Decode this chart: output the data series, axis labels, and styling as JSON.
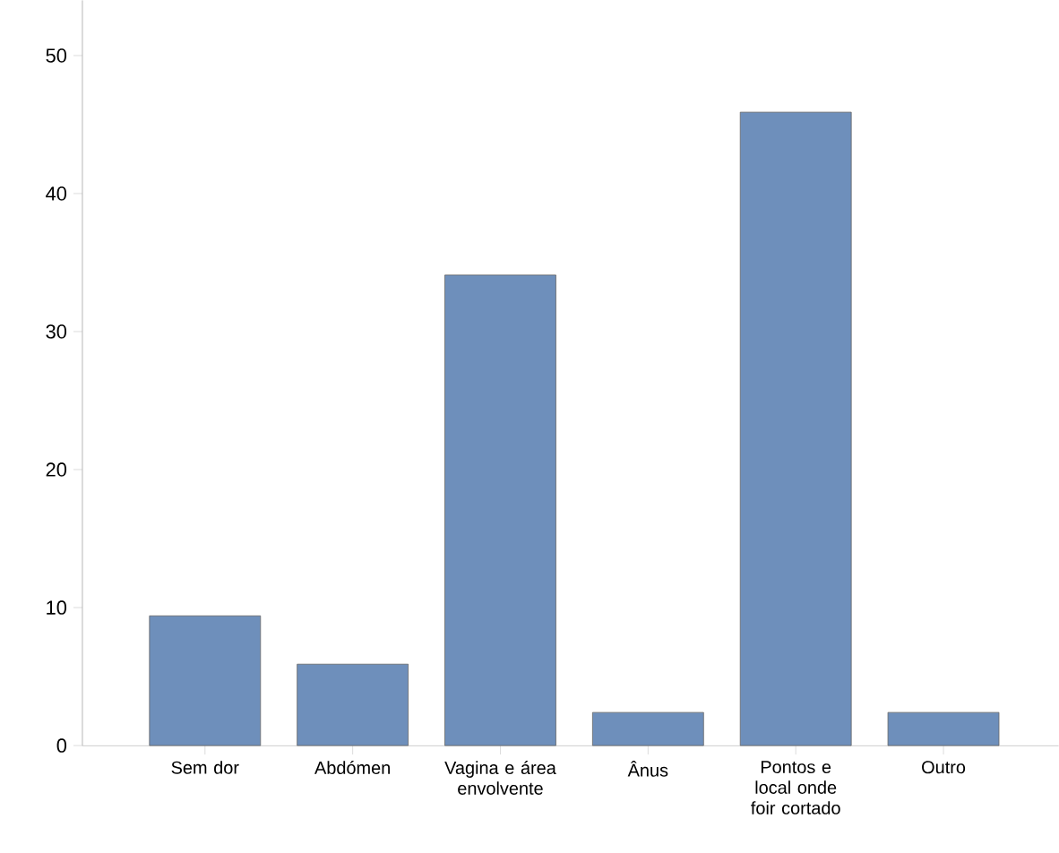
{
  "chart_data": {
    "type": "bar",
    "categories": [
      "Sem dor",
      "Abdómen",
      "Vagina e área envolvente",
      "Ânus",
      "Pontos e local onde foir cortado",
      "Outro"
    ],
    "values": [
      9.4,
      5.9,
      34.1,
      2.4,
      45.9,
      2.4
    ],
    "color": "#6e8fbb",
    "ylim": [
      0,
      54
    ],
    "yticks": [
      0,
      10,
      20,
      30,
      40,
      50
    ]
  }
}
